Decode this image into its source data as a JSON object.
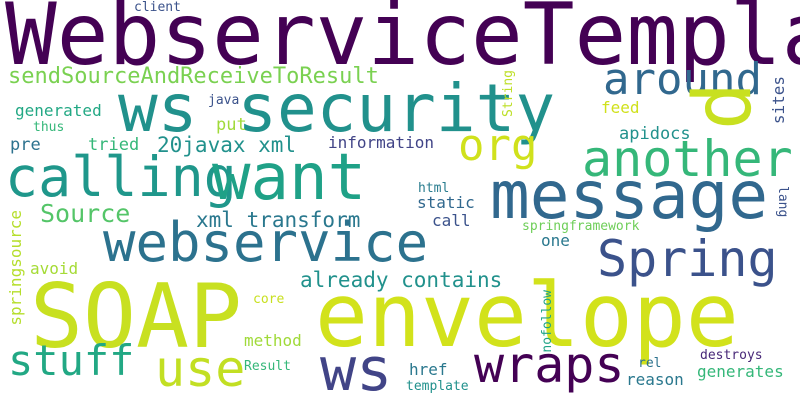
{
  "words": [
    {
      "id": "webservicetemplate",
      "text": "WebserviceTemplate",
      "color": "#440154"
    },
    {
      "id": "client",
      "text": "client",
      "color": "#3b528b"
    },
    {
      "id": "sendsource",
      "text": "sendSourceAndReceiveToResult",
      "color": "#7ad151"
    },
    {
      "id": "around",
      "text": "around",
      "color": "#31688e"
    },
    {
      "id": "ws-security",
      "text": "ws security",
      "color": "#21918c"
    },
    {
      "id": "p",
      "text": "p",
      "color": "#c8e020"
    },
    {
      "id": "string",
      "text": "String",
      "color": "#bddf26"
    },
    {
      "id": "sites",
      "text": "sites",
      "color": "#3b528b"
    },
    {
      "id": "java",
      "text": "java",
      "color": "#3b528b"
    },
    {
      "id": "generated",
      "text": "generated",
      "color": "#22a884"
    },
    {
      "id": "thus",
      "text": "thus",
      "color": "#35b779"
    },
    {
      "id": "put",
      "text": "put",
      "color": "#a0da39"
    },
    {
      "id": "feed",
      "text": "feed",
      "color": "#d0e11c"
    },
    {
      "id": "apidocs",
      "text": "apidocs",
      "color": "#21918c"
    },
    {
      "id": "org",
      "text": "org",
      "color": "#d0e11c"
    },
    {
      "id": "another",
      "text": "another",
      "color": "#35b779"
    },
    {
      "id": "calling",
      "text": "calling",
      "color": "#1f978b"
    },
    {
      "id": "want",
      "text": "want",
      "color": "#1fa187"
    },
    {
      "id": "pre",
      "text": "pre",
      "color": "#2c728e"
    },
    {
      "id": "tried",
      "text": "tried",
      "color": "#35b779"
    },
    {
      "id": "20javax-xml",
      "text": "20javax xml",
      "color": "#21918c"
    },
    {
      "id": "information",
      "text": "information",
      "color": "#414487"
    },
    {
      "id": "message",
      "text": "message",
      "color": "#31688e"
    },
    {
      "id": "source",
      "text": "Source",
      "color": "#54c568"
    },
    {
      "id": "html",
      "text": "html",
      "color": "#287c8e"
    },
    {
      "id": "static",
      "text": "static",
      "color": "#31688e"
    },
    {
      "id": "xml-transform",
      "text": "xml transform",
      "color": "#2a788e"
    },
    {
      "id": "springsource",
      "text": "springsource",
      "color": "#b5de2b"
    },
    {
      "id": "webservice",
      "text": "webservice",
      "color": "#2c728e"
    },
    {
      "id": "call",
      "text": "call",
      "color": "#3b528b"
    },
    {
      "id": "springframework",
      "text": "springframework",
      "color": "#6ece58"
    },
    {
      "id": "one",
      "text": "one",
      "color": "#2a788e"
    },
    {
      "id": "lang",
      "text": "lang",
      "color": "#3b528b"
    },
    {
      "id": "spring",
      "text": "Spring",
      "color": "#3b528b"
    },
    {
      "id": "avoid",
      "text": "avoid",
      "color": "#a5db36"
    },
    {
      "id": "already-contains",
      "text": "already contains",
      "color": "#21918c"
    },
    {
      "id": "soap",
      "text": "SOAP",
      "color": "#c8e020"
    },
    {
      "id": "envelope",
      "text": "envelope",
      "color": "#d2e21b"
    },
    {
      "id": "core",
      "text": "core",
      "color": "#c8e020"
    },
    {
      "id": "method",
      "text": "method",
      "color": "#a0da39"
    },
    {
      "id": "nofollow",
      "text": "nofollow",
      "color": "#20a486"
    },
    {
      "id": "stuff",
      "text": "stuff",
      "color": "#22a884"
    },
    {
      "id": "use",
      "text": "use",
      "color": "#c2df23"
    },
    {
      "id": "ws",
      "text": "ws",
      "color": "#414487"
    },
    {
      "id": "result",
      "text": "Result",
      "color": "#35b779"
    },
    {
      "id": "href",
      "text": "href",
      "color": "#2a788e"
    },
    {
      "id": "wraps",
      "text": "wraps",
      "color": "#440154"
    },
    {
      "id": "rel",
      "text": "rel",
      "color": "#2c728e"
    },
    {
      "id": "destroys",
      "text": "destroys",
      "color": "#482878"
    },
    {
      "id": "generates",
      "text": "generates",
      "color": "#35b779"
    },
    {
      "id": "template",
      "text": "template",
      "color": "#21918c"
    },
    {
      "id": "reason",
      "text": "reason",
      "color": "#2a788e"
    }
  ]
}
